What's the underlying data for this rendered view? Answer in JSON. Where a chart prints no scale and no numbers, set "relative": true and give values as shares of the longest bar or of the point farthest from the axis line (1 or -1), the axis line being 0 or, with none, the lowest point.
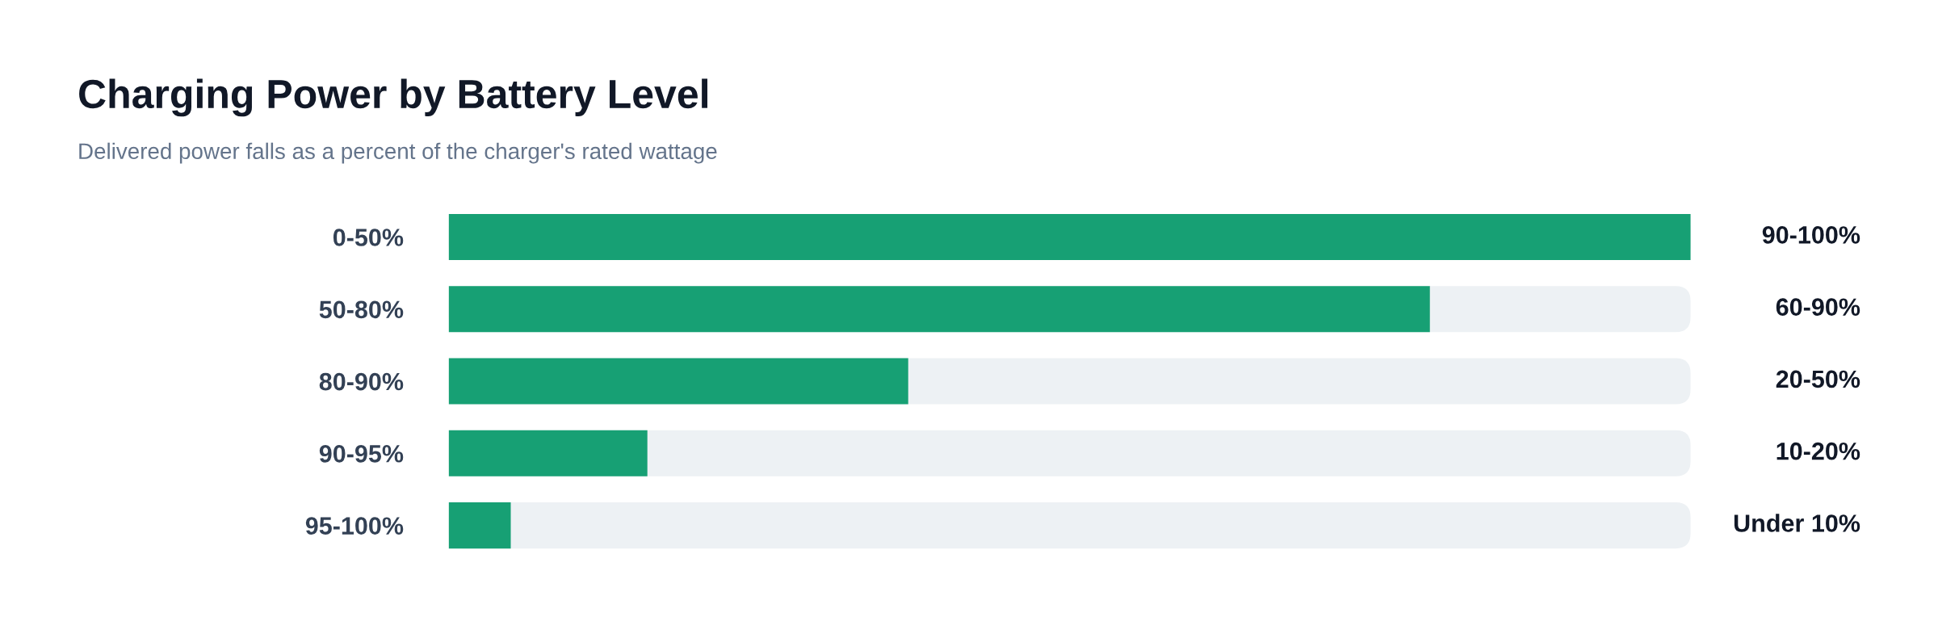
{
  "chart_data": {
    "type": "bar",
    "orientation": "horizontal",
    "relative": true,
    "title": "Charging Power by Battery Level",
    "subtitle": "Delivered power falls as a percent of the charger's rated wattage",
    "categories": [
      "0-50%",
      "50-80%",
      "80-90%",
      "90-95%",
      "95-100%"
    ],
    "values": [
      1.0,
      0.79,
      0.37,
      0.16,
      0.05
    ],
    "annotations": [
      "90-100%",
      "60-90%",
      "20-50%",
      "10-20%",
      "Under 10%"
    ],
    "color": "#17a074",
    "grid": false,
    "legend": false
  }
}
